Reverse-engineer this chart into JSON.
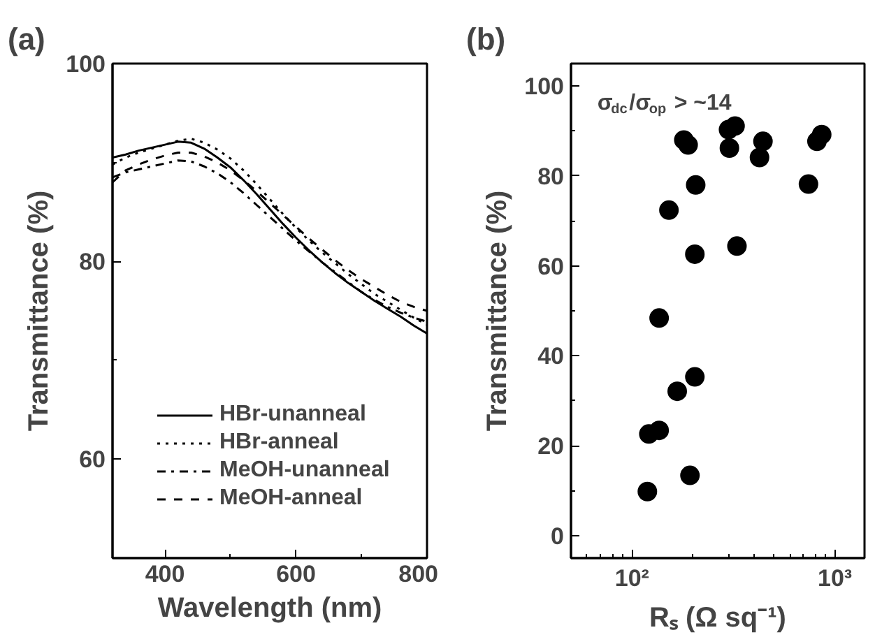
{
  "chart_data": [
    {
      "type": "line",
      "title": "(a)",
      "xlabel": "Wavelength (nm)",
      "ylabel": "Transmittance (%)",
      "x": [
        320,
        340,
        360,
        380,
        400,
        420,
        440,
        460,
        480,
        500,
        520,
        540,
        560,
        580,
        600,
        620,
        640,
        660,
        680,
        700,
        720,
        740,
        760,
        780,
        800
      ],
      "series": [
        {
          "name": "HBr-unanneal",
          "color": "#000000",
          "line_style": "solid",
          "values": [
            90.5,
            90.8,
            91.2,
            91.5,
            91.8,
            92.1,
            92.0,
            91.4,
            90.5,
            89.5,
            88.2,
            86.8,
            85.3,
            83.8,
            82.4,
            81.1,
            79.9,
            78.8,
            77.8,
            76.9,
            76.0,
            75.2,
            74.4,
            73.5,
            72.7
          ]
        },
        {
          "name": "HBr-anneal",
          "color": "#000000",
          "line_style": "dotted",
          "values": [
            89.8,
            90.5,
            91.0,
            91.4,
            91.8,
            92.2,
            92.4,
            92.0,
            91.3,
            90.4,
            89.2,
            87.8,
            86.3,
            84.8,
            83.4,
            82.1,
            80.9,
            79.8,
            78.7,
            77.7,
            76.7,
            75.9,
            75.1,
            74.3,
            73.6
          ]
        },
        {
          "name": "MeOH-unanneal",
          "color": "#000000",
          "line_style": "dashdot",
          "values": [
            88.5,
            89.0,
            89.3,
            89.6,
            89.9,
            90.2,
            90.1,
            89.6,
            88.9,
            88.0,
            86.9,
            85.7,
            84.5,
            83.3,
            82.1,
            81.0,
            79.9,
            78.9,
            77.9,
            76.9,
            76.1,
            75.4,
            74.8,
            74.3,
            73.9
          ]
        },
        {
          "name": "MeOH-anneal",
          "color": "#000000",
          "line_style": "dashed",
          "values": [
            88.0,
            89.2,
            89.8,
            90.3,
            90.7,
            91.0,
            91.0,
            90.6,
            90.0,
            89.2,
            88.2,
            87.1,
            85.9,
            84.7,
            83.5,
            82.3,
            81.2,
            80.1,
            79.1,
            78.2,
            77.4,
            76.6,
            75.9,
            75.4,
            75.0
          ]
        }
      ],
      "xlim": [
        320,
        800
      ],
      "xticks": [
        400,
        {
          "value": 500,
          "label": null
        },
        600,
        {
          "value": 700,
          "label": null
        },
        800
      ],
      "ylim": [
        50,
        100
      ],
      "yticks": [
        60,
        {
          "value": 70,
          "label": null
        },
        80,
        {
          "value": 90,
          "label": null
        },
        100
      ],
      "legend": "bottom left"
    },
    {
      "type": "scatter",
      "title": "(b)",
      "xlabel": "Rₛ (Ω sq⁻¹)",
      "ylabel": "Transmittance (%)",
      "log": "x",
      "marker": "circle",
      "annotations": [
        "σ$_{dc}$/σ$_{op}$ > ~14"
      ],
      "series": [
        {
          "color": "#000000",
          "x": [
            119,
            121,
            136,
            136,
            152,
            167,
            193,
            204,
            204,
            206,
            180,
            189,
            299,
            322,
            302,
            329,
            425,
            442,
            741,
            816,
            861
          ],
          "values": [
            9.8,
            22.6,
            23.4,
            48.4,
            72.4,
            32.1,
            13.4,
            35.3,
            62.6,
            78.0,
            88.0,
            86.9,
            90.3,
            91.1,
            86.2,
            64.4,
            84.1,
            87.7,
            78.2,
            87.7,
            89.2
          ]
        }
      ],
      "xlim": [
        50,
        1400
      ],
      "xticks": [
        {
          "value": 50,
          "label": null
        },
        {
          "value": 60,
          "label": null
        },
        {
          "value": 70,
          "label": null
        },
        {
          "value": 80,
          "label": null
        },
        {
          "value": 90,
          "label": null
        },
        {
          "value": 100,
          "label": "10²"
        },
        {
          "value": 200,
          "label": null
        },
        {
          "value": 300,
          "label": null
        },
        {
          "value": 400,
          "label": null
        },
        {
          "value": 500,
          "label": null
        },
        {
          "value": 600,
          "label": null
        },
        {
          "value": 700,
          "label": null
        },
        {
          "value": 800,
          "label": null
        },
        {
          "value": 900,
          "label": null
        },
        {
          "value": 1000,
          "label": "10³"
        }
      ],
      "ylim": [
        -5,
        105
      ],
      "yticks": [
        0,
        {
          "value": 10,
          "label": null
        },
        20,
        {
          "value": 30,
          "label": null
        },
        40,
        {
          "value": 50,
          "label": null
        },
        60,
        {
          "value": 70,
          "label": null
        },
        80,
        {
          "value": 90,
          "label": null
        },
        100
      ]
    }
  ]
}
